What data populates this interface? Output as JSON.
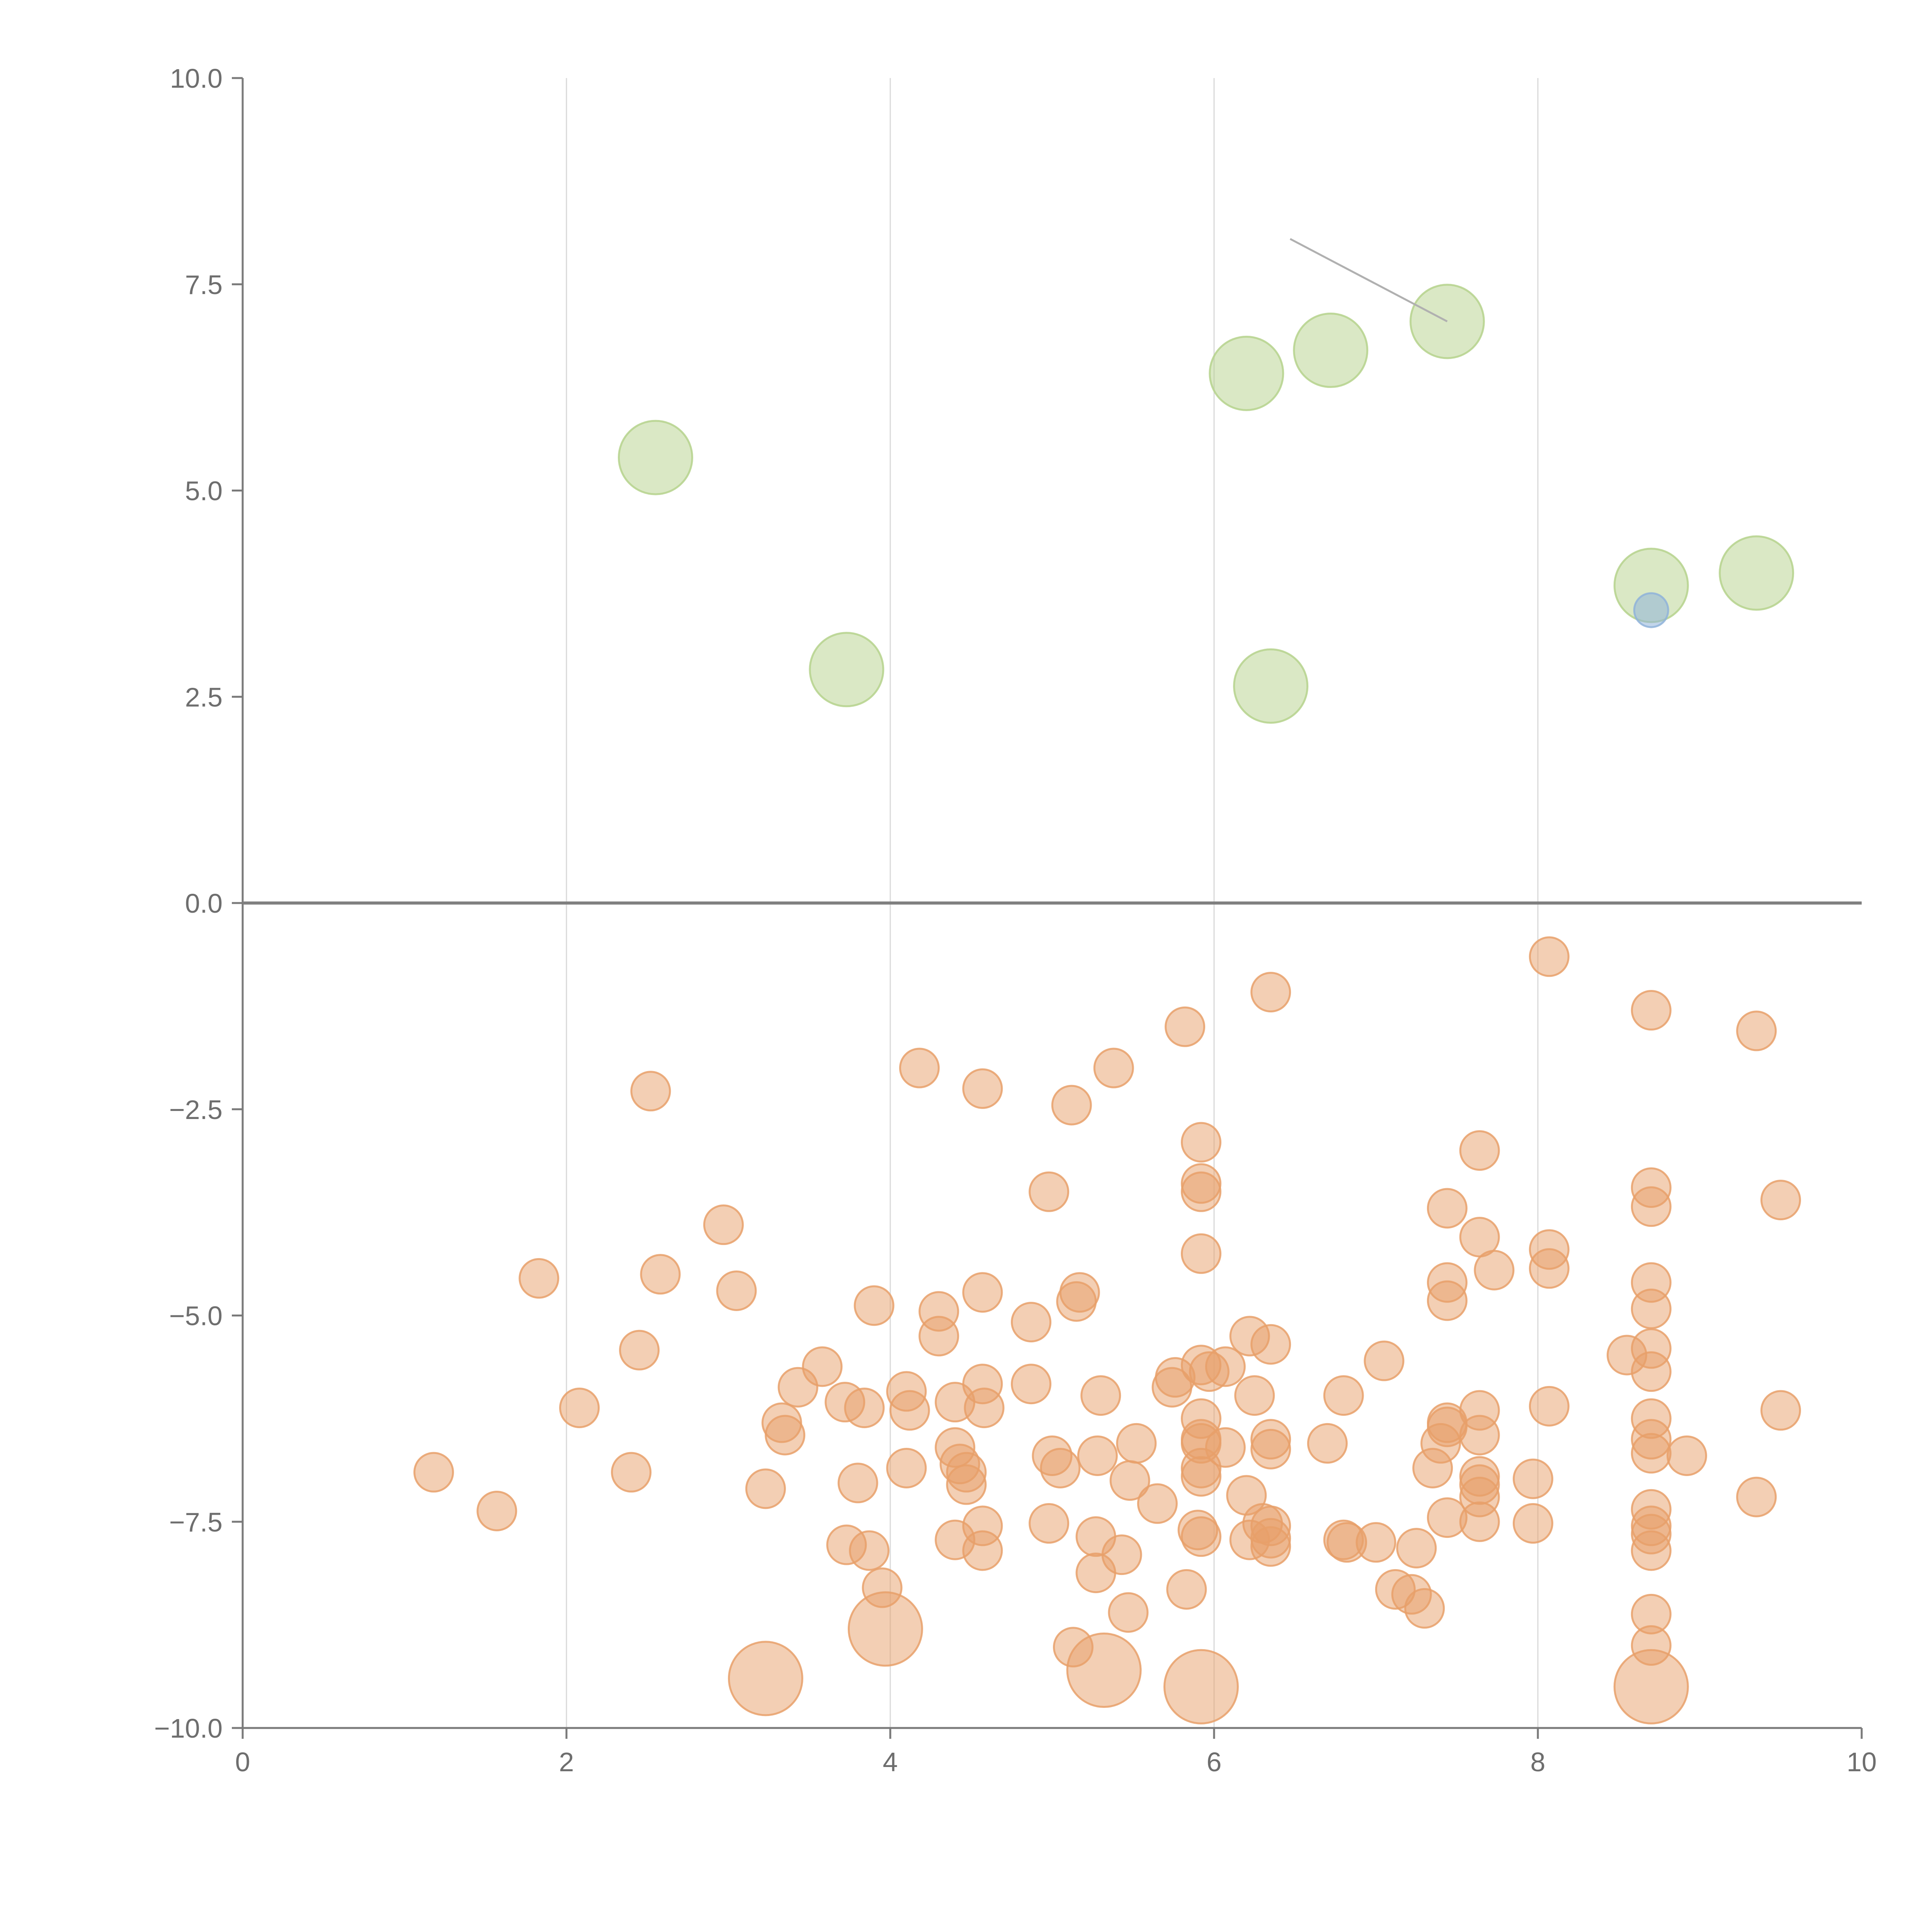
{
  "chart_data": {
    "type": "scatter",
    "title": "",
    "xlabel": "",
    "ylabel": "",
    "xlim": [
      0,
      10
    ],
    "ylim": [
      -10,
      10
    ],
    "x_ticks": [
      "0",
      "2",
      "4",
      "6",
      "8",
      "10"
    ],
    "y_ticks": [
      "−10.0",
      "−7.5",
      "−5.0",
      "−2.5",
      "0.0",
      "2.5",
      "5.0",
      "7.5",
      "10.0"
    ],
    "grid": "vertical",
    "colors": {
      "positive": "#b5d28c",
      "negative": "#e8a06a",
      "highlight": "#8fb3d9"
    },
    "series": [
      {
        "name": "positive",
        "size": "large",
        "points": [
          [
            2.55,
            5.4
          ],
          [
            3.73,
            2.83
          ],
          [
            6.2,
            6.42
          ],
          [
            6.72,
            6.7
          ],
          [
            7.44,
            7.05
          ],
          [
            6.35,
            2.63
          ],
          [
            8.7,
            3.85
          ],
          [
            9.35,
            4.0
          ]
        ]
      },
      {
        "name": "highlight",
        "size": "small",
        "points": [
          [
            8.7,
            3.55
          ]
        ]
      },
      {
        "name": "negative-large",
        "size": "large",
        "points": [
          [
            3.23,
            -9.4
          ],
          [
            3.97,
            -8.8
          ],
          [
            5.32,
            -9.3
          ],
          [
            5.92,
            -9.5
          ],
          [
            8.7,
            -9.5
          ]
        ]
      },
      {
        "name": "negative",
        "size": "medium",
        "points": [
          [
            8.07,
            -0.65
          ],
          [
            6.35,
            -1.08
          ],
          [
            8.7,
            -1.3
          ],
          [
            9.35,
            -1.55
          ],
          [
            5.82,
            -1.5
          ],
          [
            4.18,
            -2.0
          ],
          [
            5.38,
            -2.0
          ],
          [
            2.52,
            -2.28
          ],
          [
            4.57,
            -2.25
          ],
          [
            5.12,
            -2.45
          ],
          [
            5.92,
            -2.9
          ],
          [
            7.64,
            -3.0
          ],
          [
            4.98,
            -3.5
          ],
          [
            5.92,
            -3.4
          ],
          [
            5.92,
            -3.5
          ],
          [
            8.7,
            -3.45
          ],
          [
            8.7,
            -3.68
          ],
          [
            9.5,
            -3.6
          ],
          [
            7.44,
            -3.7
          ],
          [
            2.97,
            -3.9
          ],
          [
            7.64,
            -4.05
          ],
          [
            8.07,
            -4.2
          ],
          [
            5.92,
            -4.25
          ],
          [
            7.73,
            -4.45
          ],
          [
            8.07,
            -4.43
          ],
          [
            1.83,
            -4.55
          ],
          [
            2.58,
            -4.5
          ],
          [
            3.05,
            -4.7
          ],
          [
            7.44,
            -4.6
          ],
          [
            8.7,
            -4.6
          ],
          [
            4.57,
            -4.72
          ],
          [
            5.17,
            -4.72
          ],
          [
            5.15,
            -4.83
          ],
          [
            7.44,
            -4.82
          ],
          [
            3.9,
            -4.88
          ],
          [
            4.3,
            -4.95
          ],
          [
            8.7,
            -4.92
          ],
          [
            4.87,
            -5.08
          ],
          [
            6.22,
            -5.25
          ],
          [
            4.3,
            -5.25
          ],
          [
            6.35,
            -5.35
          ],
          [
            2.45,
            -5.42
          ],
          [
            8.55,
            -5.48
          ],
          [
            8.7,
            -5.4
          ],
          [
            7.05,
            -5.55
          ],
          [
            3.58,
            -5.62
          ],
          [
            5.92,
            -5.6
          ],
          [
            6.07,
            -5.62
          ],
          [
            5.97,
            -5.68
          ],
          [
            8.7,
            -5.68
          ],
          [
            5.76,
            -5.75
          ],
          [
            3.43,
            -5.87
          ],
          [
            4.57,
            -5.83
          ],
          [
            4.1,
            -5.92
          ],
          [
            5.74,
            -5.87
          ],
          [
            4.87,
            -5.83
          ],
          [
            5.3,
            -5.97
          ],
          [
            6.25,
            -5.97
          ],
          [
            6.8,
            -5.97
          ],
          [
            3.72,
            -6.05
          ],
          [
            4.4,
            -6.05
          ],
          [
            2.08,
            -6.12
          ],
          [
            3.84,
            -6.12
          ],
          [
            4.12,
            -6.15
          ],
          [
            4.58,
            -6.12
          ],
          [
            8.07,
            -6.1
          ],
          [
            7.64,
            -6.15
          ],
          [
            9.5,
            -6.15
          ],
          [
            5.92,
            -6.25
          ],
          [
            3.33,
            -6.3
          ],
          [
            7.44,
            -6.3
          ],
          [
            7.44,
            -6.35
          ],
          [
            8.7,
            -6.25
          ],
          [
            7.64,
            -6.45
          ],
          [
            3.35,
            -6.45
          ],
          [
            5.92,
            -6.5
          ],
          [
            6.35,
            -6.5
          ],
          [
            6.7,
            -6.55
          ],
          [
            5.92,
            -6.55
          ],
          [
            7.4,
            -6.55
          ],
          [
            8.7,
            -6.5
          ],
          [
            5.52,
            -6.55
          ],
          [
            4.4,
            -6.6
          ],
          [
            6.07,
            -6.6
          ],
          [
            6.35,
            -6.62
          ],
          [
            5.0,
            -6.7
          ],
          [
            5.28,
            -6.7
          ],
          [
            8.7,
            -6.67
          ],
          [
            8.92,
            -6.7
          ],
          [
            1.18,
            -6.9
          ],
          [
            2.4,
            -6.9
          ],
          [
            4.43,
            -6.8
          ],
          [
            4.47,
            -6.9
          ],
          [
            5.05,
            -6.85
          ],
          [
            4.1,
            -6.85
          ],
          [
            5.92,
            -6.85
          ],
          [
            5.92,
            -6.95
          ],
          [
            7.35,
            -6.85
          ],
          [
            7.64,
            -6.95
          ],
          [
            7.97,
            -6.98
          ],
          [
            3.8,
            -7.03
          ],
          [
            4.47,
            -7.05
          ],
          [
            5.48,
            -7.0
          ],
          [
            7.64,
            -7.05
          ],
          [
            3.23,
            -7.1
          ],
          [
            6.2,
            -7.18
          ],
          [
            7.64,
            -7.2
          ],
          [
            9.35,
            -7.2
          ],
          [
            5.65,
            -7.28
          ],
          [
            1.57,
            -7.37
          ],
          [
            7.44,
            -7.45
          ],
          [
            8.7,
            -7.35
          ],
          [
            4.98,
            -7.52
          ],
          [
            7.64,
            -7.5
          ],
          [
            7.97,
            -7.52
          ],
          [
            4.57,
            -7.55
          ],
          [
            6.3,
            -7.52
          ],
          [
            6.35,
            -7.55
          ],
          [
            5.9,
            -7.6
          ],
          [
            8.7,
            -7.55
          ],
          [
            8.7,
            -7.65
          ],
          [
            5.27,
            -7.68
          ],
          [
            5.92,
            -7.68
          ],
          [
            6.22,
            -7.72
          ],
          [
            6.35,
            -7.7
          ],
          [
            3.73,
            -7.78
          ],
          [
            4.4,
            -7.72
          ],
          [
            6.8,
            -7.72
          ],
          [
            6.82,
            -7.75
          ],
          [
            7.0,
            -7.75
          ],
          [
            3.87,
            -7.85
          ],
          [
            4.57,
            -7.85
          ],
          [
            7.25,
            -7.82
          ],
          [
            6.35,
            -7.8
          ],
          [
            8.7,
            -7.85
          ],
          [
            5.43,
            -7.9
          ],
          [
            5.27,
            -8.12
          ],
          [
            3.95,
            -8.3
          ],
          [
            5.83,
            -8.32
          ],
          [
            7.12,
            -8.32
          ],
          [
            7.22,
            -8.38
          ],
          [
            7.3,
            -8.55
          ],
          [
            5.47,
            -8.6
          ],
          [
            8.7,
            -8.62
          ],
          [
            5.13,
            -9.02
          ],
          [
            8.7,
            -9.0
          ]
        ]
      }
    ]
  }
}
